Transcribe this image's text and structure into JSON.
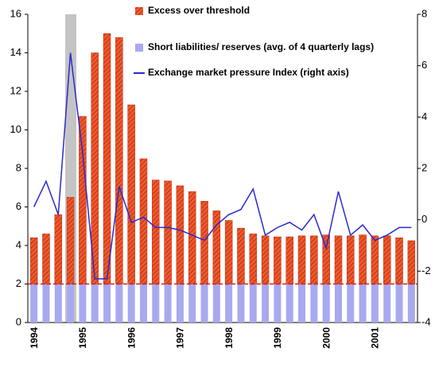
{
  "chart_data": {
    "type": "bar",
    "categories": [
      "1994",
      null,
      null,
      null,
      "1995",
      null,
      null,
      null,
      "1996",
      null,
      null,
      null,
      "1997",
      null,
      null,
      null,
      "1998",
      null,
      null,
      null,
      "1999",
      null,
      null,
      null,
      "2000",
      null,
      null,
      null,
      "2001",
      null,
      null,
      null
    ],
    "series": [
      {
        "name": "Short liabilities/ reserves (avg. of 4 quarterly lags)",
        "color": "#a9a9f0",
        "type": "bar",
        "values": [
          2,
          2,
          2,
          2,
          2,
          2,
          2,
          2,
          2,
          2,
          2,
          2,
          2,
          2,
          2,
          2,
          2,
          2,
          2,
          2,
          2,
          2,
          2,
          2,
          2,
          2,
          2,
          2,
          2,
          2,
          2,
          2
        ]
      },
      {
        "name": "Excess over threshold",
        "color": "#e8401c",
        "type": "bar",
        "values": [
          2.4,
          2.6,
          3.6,
          4.5,
          8.7,
          12.0,
          13.0,
          12.8,
          9.3,
          6.5,
          5.4,
          5.35,
          5.1,
          4.8,
          4.3,
          3.8,
          3.3,
          2.9,
          2.6,
          2.5,
          2.45,
          2.45,
          2.5,
          2.5,
          2.55,
          2.5,
          2.5,
          2.55,
          2.5,
          2.5,
          2.4,
          2.25
        ]
      },
      {
        "name": "Exchange market pressure Index (right axis)",
        "color": "#2a2ad0",
        "type": "line",
        "axis": "y2",
        "values": [
          0.5,
          1.5,
          0.2,
          6.5,
          2.6,
          -2.3,
          -2.3,
          1.3,
          -0.1,
          0.1,
          -0.3,
          -0.3,
          -0.4,
          -0.6,
          -0.8,
          -0.2,
          0.2,
          0.4,
          1.2,
          -0.6,
          -0.3,
          -0.1,
          -0.4,
          0.2,
          -1.1,
          1.1,
          -0.6,
          -0.2,
          -0.8,
          -0.6,
          -0.3,
          -0.3
        ]
      }
    ],
    "threshold": 2,
    "ylim": [
      0,
      16
    ],
    "yticks": [
      0,
      2,
      4,
      6,
      8,
      10,
      12,
      14,
      16
    ],
    "y2lim": [
      -4,
      8
    ],
    "y2ticks": [
      -4,
      -2,
      0,
      2,
      4,
      6,
      8
    ],
    "stacked": true,
    "grid": false
  }
}
